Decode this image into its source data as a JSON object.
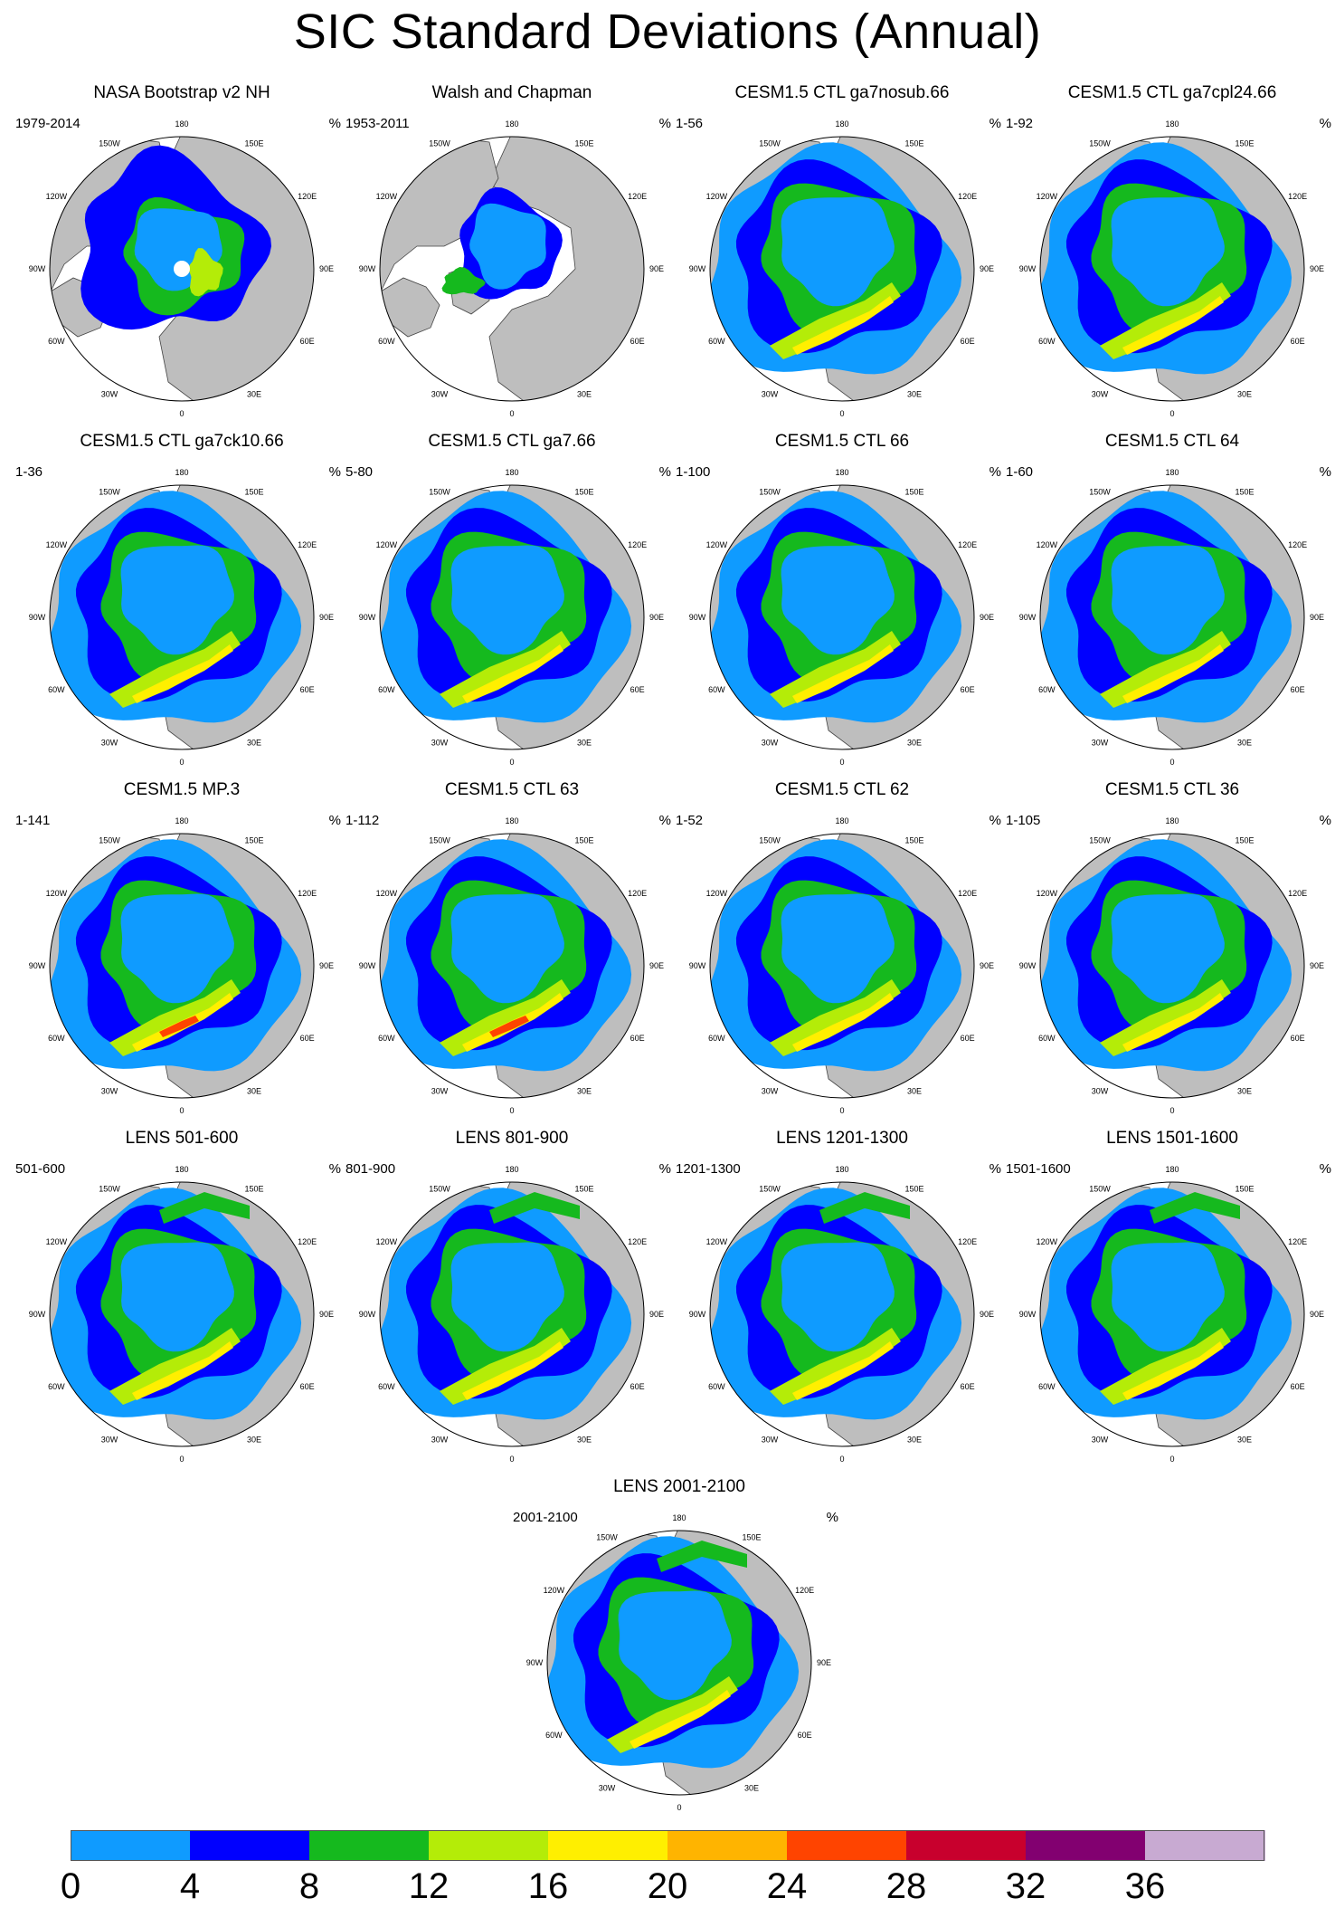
{
  "title": "SIC Standard Deviations (Annual)",
  "units": "%",
  "lon_labels": [
    "180",
    "150E",
    "120E",
    "90E",
    "60E",
    "30E",
    "0",
    "30W",
    "60W",
    "90W",
    "120W",
    "150W"
  ],
  "panels": [
    {
      "title": "NASA Bootstrap v2 NH",
      "period": "1979-2014",
      "pattern": "obs1"
    },
    {
      "title": "Walsh and Chapman",
      "period": "1953-2011",
      "pattern": "obs2"
    },
    {
      "title": "CESM1.5 CTL ga7nosub.66",
      "period": "1-56",
      "pattern": "model"
    },
    {
      "title": "CESM1.5 CTL ga7cpl24.66",
      "period": "1-92",
      "pattern": "model"
    },
    {
      "title": "CESM1.5 CTL ga7ck10.66",
      "period": "1-36",
      "pattern": "model"
    },
    {
      "title": "CESM1.5 CTL ga7.66",
      "period": "5-80",
      "pattern": "model"
    },
    {
      "title": "CESM1.5 CTL 66",
      "period": "1-100",
      "pattern": "model"
    },
    {
      "title": "CESM1.5 CTL 64",
      "period": "1-60",
      "pattern": "model"
    },
    {
      "title": "CESM1.5 MP.3",
      "period": "1-141",
      "pattern": "hot"
    },
    {
      "title": "CESM1.5 CTL 63",
      "period": "1-112",
      "pattern": "hot"
    },
    {
      "title": "CESM1.5 CTL 62",
      "period": "1-52",
      "pattern": "model"
    },
    {
      "title": "CESM1.5 CTL 36",
      "period": "1-105",
      "pattern": "model"
    },
    {
      "title": "LENS 501-600",
      "period": "501-600",
      "pattern": "lens"
    },
    {
      "title": "LENS 801-900",
      "period": "801-900",
      "pattern": "lens"
    },
    {
      "title": "LENS 1201-1300",
      "period": "1201-1300",
      "pattern": "lens"
    },
    {
      "title": "LENS 1501-1600",
      "period": "1501-1600",
      "pattern": "lens"
    },
    {
      "title": "LENS 2001-2100",
      "period": "2001-2100",
      "pattern": "lens"
    }
  ],
  "colorbar": {
    "colors": [
      "#0f9bff",
      "#0000ff",
      "#15b91e",
      "#b4ec08",
      "#ffef00",
      "#ffb400",
      "#ff4400",
      "#c8002d",
      "#820070",
      "#c8aad2"
    ],
    "ticks": [
      "0",
      "4",
      "8",
      "12",
      "16",
      "20",
      "24",
      "28",
      "32",
      "36"
    ]
  }
}
